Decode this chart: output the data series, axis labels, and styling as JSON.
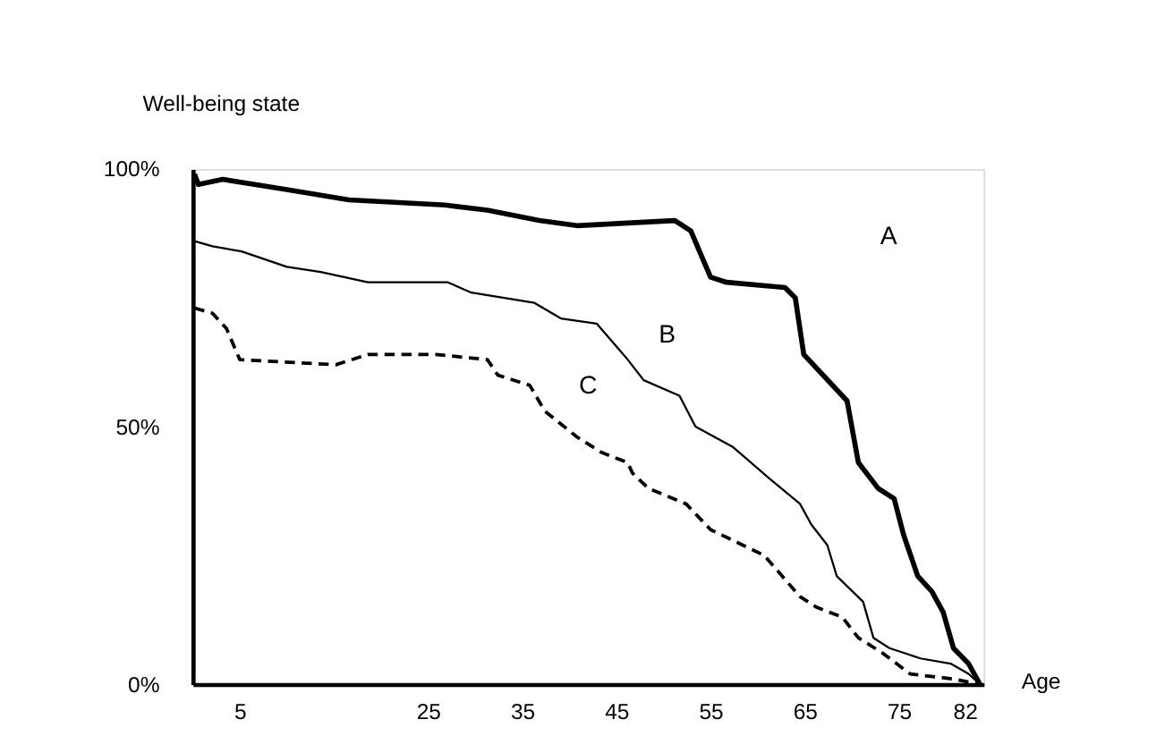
{
  "chart_data": {
    "type": "line",
    "xlabel": "Age",
    "ylabel": "Well-being state",
    "xlim": [
      0,
      84
    ],
    "ylim": [
      0,
      100
    ],
    "xticks": [
      5,
      25,
      35,
      45,
      55,
      65,
      75,
      82
    ],
    "yticks": [
      {
        "value": 0,
        "label": "0%"
      },
      {
        "value": 50,
        "label": "50%"
      },
      {
        "value": 100,
        "label": "100%"
      }
    ],
    "grid": false,
    "marker": "none",
    "series": [
      {
        "color": "#000000",
        "line_style": "solid",
        "x": [
          0.2,
          0.6,
          3.2,
          10,
          16.6,
          26.8,
          31.3,
          36.8,
          40.8,
          46.2,
          51.2,
          52.9,
          55,
          56.7,
          62.9,
          64,
          64.9,
          69.5,
          70.7,
          72.8,
          74.5,
          75.5,
          77,
          78.5,
          79.7,
          80.8,
          82.4,
          83.6
        ],
        "values": [
          99,
          97,
          98,
          96,
          94,
          93,
          92,
          90,
          89,
          89.5,
          90,
          88,
          79,
          78,
          77,
          75,
          64,
          55,
          43,
          38,
          36,
          29,
          21,
          18,
          14,
          7,
          4,
          0
        ]
      },
      {
        "color": "#000000",
        "line_style": "solid",
        "x": [
          0.2,
          2.1,
          5.2,
          10,
          13.6,
          18.6,
          27.1,
          29.6,
          36.3,
          39.1,
          42.9,
          46.2,
          47.9,
          51.7,
          53.4,
          57.4,
          61.2,
          64.5,
          65.7,
          67.4,
          68.4,
          71.2,
          72.3,
          74,
          77.3,
          80.5,
          82.4,
          83.6
        ],
        "values": [
          86,
          85,
          84,
          81,
          80,
          78,
          78,
          76,
          74,
          71,
          70,
          63,
          59,
          56,
          50,
          46,
          40,
          35,
          31,
          27,
          21,
          16,
          9,
          7,
          5,
          4,
          2,
          0
        ]
      },
      {
        "color": "#000000",
        "line_style": "dashed",
        "x": [
          0.2,
          2.1,
          3.6,
          5,
          15.2,
          18.6,
          25.8,
          31.3,
          32.4,
          35.8,
          37.4,
          40.8,
          43.4,
          46.2,
          46.7,
          48.4,
          52.4,
          55,
          60.7,
          64.5,
          66.2,
          69,
          70.7,
          73.3,
          76.2,
          80.8,
          83.6
        ],
        "values": [
          73,
          72,
          69,
          63,
          62,
          64,
          64,
          63,
          60,
          58,
          53,
          48,
          45,
          43,
          41,
          38,
          35,
          30,
          25,
          17,
          15,
          13,
          9,
          6,
          2,
          1,
          0
        ]
      }
    ],
    "annotations": [
      "A",
      "B",
      "C"
    ]
  }
}
